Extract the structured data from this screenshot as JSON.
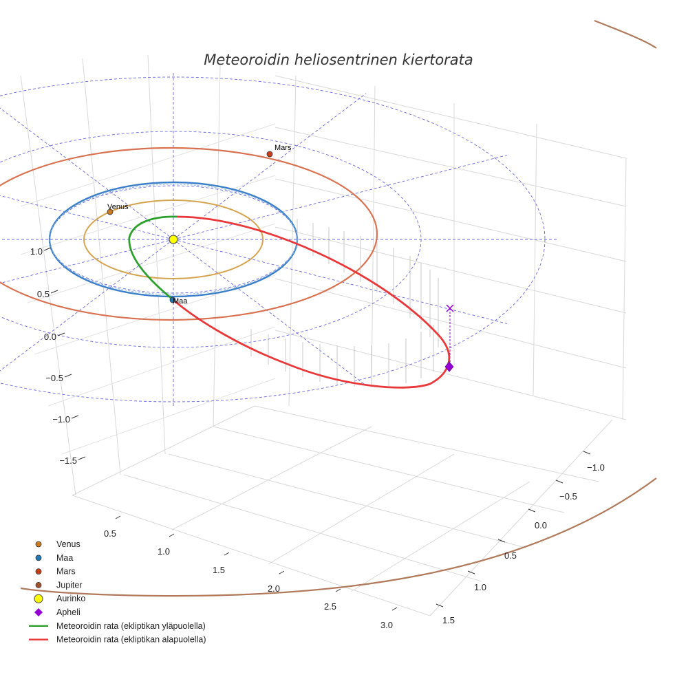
{
  "chart_data": {
    "type": "3d-orbit",
    "title": "Meteoroidin heliosentrinen kiertorata",
    "axes": {
      "x": {
        "ticks": [
          "0.5",
          "1.0",
          "1.5",
          "2.0",
          "2.5",
          "3.0"
        ],
        "range": [
          0.3,
          3.2
        ]
      },
      "y": {
        "ticks": [
          "−1.0",
          "−0.5",
          "0.0",
          "0.5",
          "1.0",
          "1.5"
        ],
        "range": [
          -1.3,
          1.6
        ]
      },
      "z": {
        "ticks": [
          "1.0",
          "0.5",
          "0.0",
          "−0.5",
          "−1.0",
          "−1.5"
        ],
        "range": [
          -1.8,
          1.3
        ]
      }
    },
    "planets": [
      {
        "name": "Venus",
        "label": "Venus",
        "color": "#cc7a1f"
      },
      {
        "name": "Maa",
        "label": "Maa",
        "color": "#1f77b4"
      },
      {
        "name": "Mars",
        "label": "Mars",
        "color": "#c8401a"
      },
      {
        "name": "Jupiter",
        "label": "",
        "color": "#a0522d"
      }
    ],
    "orbits": [
      {
        "name": "Venus",
        "color": "#d4a450"
      },
      {
        "name": "Maa",
        "color": "#3a7fc8"
      },
      {
        "name": "Mars",
        "color": "#d87250"
      },
      {
        "name": "Jupiter",
        "color": "#b07a5a"
      }
    ],
    "sun": {
      "name": "Aurinko",
      "color": "#ffff00"
    },
    "aphelion": {
      "name": "Apheli",
      "color": "#9400d3"
    },
    "meteoroid": {
      "above": {
        "name": "Meteoroidin rata (ekliptikan yläpuolella)",
        "color": "#2ca02c"
      },
      "below": {
        "name": "Meteoroidin rata (ekliptikan alapuolella)",
        "color": "#e8383a"
      }
    },
    "ecliptic_grid": {
      "color": "#6666dd",
      "style": "dashed"
    }
  },
  "legend": [
    {
      "label": "Venus",
      "marker": "circle",
      "color": "#cc7a1f"
    },
    {
      "label": "Maa",
      "marker": "circle",
      "color": "#1f77b4"
    },
    {
      "label": "Mars",
      "marker": "circle",
      "color": "#c8401a"
    },
    {
      "label": "Jupiter",
      "marker": "circle",
      "color": "#a0522d"
    },
    {
      "label": "Aurinko",
      "marker": "big-circle",
      "color": "#ffff00"
    },
    {
      "label": "Apheli",
      "marker": "diamond",
      "color": "#9400d3"
    },
    {
      "label": "Meteoroidin rata (ekliptikan yläpuolella)",
      "marker": "line",
      "color": "#2ca02c"
    },
    {
      "label": "Meteoroidin rata (ekliptikan alapuolella)",
      "marker": "line",
      "color": "#e8383a"
    }
  ]
}
